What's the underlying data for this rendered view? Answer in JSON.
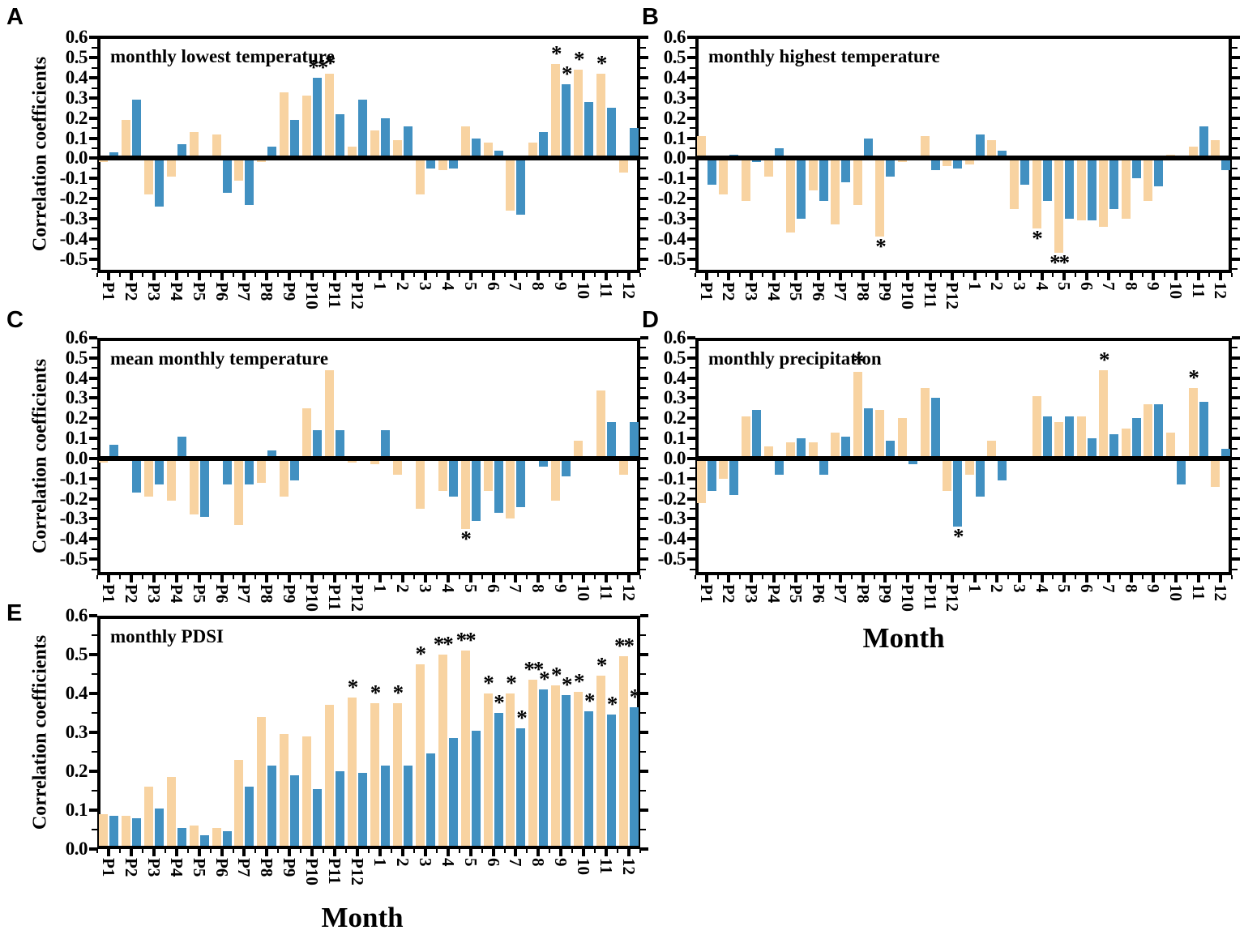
{
  "figure": {
    "x_axis_label": "Month",
    "y_axis_label": "Correlation coefficients",
    "colors": {
      "orange_series": "#F8D3A1",
      "blue_series": "#4190C1",
      "axis": "#000000",
      "background": "#FFFFFF"
    },
    "categories": [
      "P1",
      "P2",
      "P3",
      "P4",
      "P5",
      "P6",
      "P7",
      "P8",
      "P9",
      "P10",
      "P11",
      "P12",
      "1",
      "2",
      "3",
      "4",
      "5",
      "6",
      "7",
      "8",
      "9",
      "10",
      "11",
      "12"
    ]
  },
  "chart_data": [
    {
      "panel_label": "A",
      "type": "bar",
      "title": "monthly lowest temperature",
      "ylabel": "Correlation coefficients",
      "xlabel": "",
      "ylim": [
        -0.5,
        0.6
      ],
      "yticks": [
        0.6,
        0.5,
        0.4,
        0.3,
        0.2,
        0.1,
        0.0,
        -0.1,
        -0.2,
        -0.3,
        -0.4,
        -0.5
      ],
      "categories": [
        "P1",
        "P2",
        "P3",
        "P4",
        "P5",
        "P6",
        "P7",
        "P8",
        "P9",
        "P10",
        "P11",
        "P12",
        "1",
        "2",
        "3",
        "4",
        "5",
        "6",
        "7",
        "8",
        "9",
        "10",
        "11",
        "12"
      ],
      "series": [
        {
          "name": "orange",
          "color": "#F8D3A1",
          "values": [
            -0.02,
            0.19,
            -0.18,
            -0.09,
            0.13,
            0.12,
            -0.11,
            -0.02,
            0.33,
            0.31,
            0.42,
            0.06,
            0.14,
            0.09,
            -0.18,
            -0.06,
            0.16,
            0.08,
            -0.26,
            0.08,
            0.47,
            0.44,
            0.42,
            -0.07
          ],
          "significance": [
            "",
            "",
            "",
            "",
            "",
            "",
            "",
            "",
            "",
            "",
            "*",
            "",
            "",
            "",
            "",
            "",
            "",
            "",
            "",
            "",
            "*",
            "*",
            "*",
            ""
          ]
        },
        {
          "name": "blue",
          "color": "#4190C1",
          "values": [
            0.03,
            0.29,
            -0.24,
            0.07,
            0,
            -0.17,
            -0.23,
            0.06,
            0.19,
            0.4,
            0.22,
            0.29,
            0.2,
            0.16,
            -0.05,
            -0.05,
            0.1,
            0.04,
            -0.28,
            0.13,
            0.37,
            0.28,
            0.25,
            0.15
          ],
          "significance": [
            "",
            "",
            "",
            "",
            "",
            "",
            "",
            "",
            "",
            "**",
            "",
            "",
            "",
            "",
            "",
            "",
            "",
            "",
            "",
            "",
            "*",
            "",
            "",
            ""
          ]
        }
      ]
    },
    {
      "panel_label": "B",
      "type": "bar",
      "title": "monthly highest temperature",
      "ylabel": "",
      "xlabel": "Month",
      "ylim": [
        -0.5,
        0.6
      ],
      "yticks": [
        0.6,
        0.5,
        0.4,
        0.3,
        0.2,
        0.1,
        0.0,
        -0.1,
        -0.2,
        -0.3,
        -0.4,
        -0.5
      ],
      "categories": [
        "P1",
        "P2",
        "P3",
        "P4",
        "P5",
        "P6",
        "P7",
        "P8",
        "P9",
        "P10",
        "P11",
        "P12",
        "1",
        "2",
        "3",
        "4",
        "5",
        "6",
        "7",
        "8",
        "9",
        "10",
        "11",
        "12"
      ],
      "series": [
        {
          "name": "orange",
          "color": "#F8D3A1",
          "values": [
            0.11,
            -0.18,
            -0.21,
            -0.09,
            -0.37,
            -0.16,
            -0.33,
            -0.23,
            -0.39,
            -0.02,
            0.11,
            -0.04,
            -0.03,
            0.09,
            -0.25,
            -0.35,
            -0.47,
            -0.31,
            -0.34,
            -0.3,
            -0.21,
            0.02,
            0.06,
            0.09
          ],
          "significance": [
            "",
            "",
            "",
            "",
            "",
            "",
            "",
            "",
            "*",
            "",
            "",
            "",
            "",
            "",
            "",
            "*",
            "**",
            "",
            "",
            "",
            "",
            "",
            "",
            ""
          ]
        },
        {
          "name": "blue",
          "color": "#4190C1",
          "values": [
            -0.13,
            0.02,
            -0.02,
            0.05,
            -0.3,
            -0.21,
            -0.12,
            0.1,
            -0.09,
            -0.01,
            -0.06,
            -0.05,
            0.12,
            0.04,
            -0.13,
            -0.21,
            -0.3,
            -0.31,
            -0.25,
            -0.1,
            -0.14,
            0,
            0.16,
            -0.06
          ],
          "significance": [
            "",
            "",
            "",
            "",
            "",
            "",
            "",
            "",
            "",
            "",
            "",
            "",
            "",
            "",
            "",
            "",
            "",
            "",
            "",
            "",
            "",
            "",
            "",
            ""
          ]
        }
      ]
    },
    {
      "panel_label": "C",
      "type": "bar",
      "title": "mean monthly temperature",
      "ylabel": "Correlation coefficients",
      "xlabel": "",
      "ylim": [
        -0.5,
        0.6
      ],
      "yticks": [
        0.6,
        0.5,
        0.4,
        0.3,
        0.2,
        0.1,
        0.0,
        -0.1,
        -0.2,
        -0.3,
        -0.4,
        -0.5
      ],
      "categories": [
        "P1",
        "P2",
        "P3",
        "P4",
        "P5",
        "P6",
        "P7",
        "P8",
        "P9",
        "P10",
        "P11",
        "P12",
        "1",
        "2",
        "3",
        "4",
        "5",
        "6",
        "7",
        "8",
        "9",
        "10",
        "11",
        "12"
      ],
      "series": [
        {
          "name": "orange",
          "color": "#F8D3A1",
          "values": [
            -0.02,
            0,
            -0.19,
            -0.21,
            -0.28,
            0,
            -0.33,
            -0.12,
            -0.19,
            0.25,
            0.44,
            -0.02,
            -0.03,
            -0.08,
            -0.25,
            -0.16,
            -0.35,
            -0.16,
            -0.3,
            -0.01,
            -0.21,
            0.09,
            0.34,
            -0.08
          ],
          "significance": [
            "",
            "",
            "",
            "",
            "",
            "",
            "",
            "",
            "",
            "",
            "",
            "",
            "",
            "",
            "",
            "",
            "*",
            "",
            "",
            "",
            "",
            "",
            "",
            ""
          ]
        },
        {
          "name": "blue",
          "color": "#4190C1",
          "values": [
            0.07,
            -0.17,
            -0.13,
            0.11,
            -0.29,
            -0.13,
            -0.13,
            0.04,
            -0.11,
            0.14,
            0.14,
            0,
            0.14,
            0,
            -0.01,
            -0.19,
            -0.31,
            -0.27,
            -0.24,
            -0.04,
            -0.09,
            0,
            0.18,
            0.18
          ],
          "significance": [
            "",
            "",
            "",
            "",
            "",
            "",
            "",
            "",
            "",
            "",
            "",
            "",
            "",
            "",
            "",
            "",
            "",
            "",
            "",
            "",
            "",
            "",
            "",
            ""
          ]
        }
      ]
    },
    {
      "panel_label": "D",
      "type": "bar",
      "title": "monthly precipitation",
      "ylabel": "",
      "xlabel": "Month",
      "ylim": [
        -0.5,
        0.6
      ],
      "yticks": [
        0.6,
        0.5,
        0.4,
        0.3,
        0.2,
        0.1,
        0.0,
        -0.1,
        -0.2,
        -0.3,
        -0.4,
        -0.5
      ],
      "categories": [
        "P1",
        "P2",
        "P3",
        "P4",
        "P5",
        "P6",
        "P7",
        "P8",
        "P9",
        "P10",
        "P11",
        "P12",
        "1",
        "2",
        "3",
        "4",
        "5",
        "6",
        "7",
        "8",
        "9",
        "10",
        "11",
        "12"
      ],
      "series": [
        {
          "name": "orange",
          "color": "#F8D3A1",
          "values": [
            -0.22,
            -0.1,
            0.21,
            0.06,
            0.08,
            0.08,
            0.13,
            0.43,
            0.24,
            0.2,
            0.35,
            -0.16,
            -0.08,
            0.09,
            0,
            0.31,
            0.18,
            0.21,
            0.44,
            0.15,
            0.27,
            0.13,
            0.35,
            -0.14
          ],
          "significance": [
            "",
            "",
            "",
            "",
            "",
            "",
            "",
            "*",
            "",
            "",
            "",
            "",
            "",
            "",
            "",
            "",
            "",
            "",
            "*",
            "",
            "",
            "",
            "*",
            ""
          ]
        },
        {
          "name": "blue",
          "color": "#4190C1",
          "values": [
            -0.16,
            -0.18,
            0.24,
            -0.08,
            0.1,
            -0.08,
            0.11,
            0.25,
            0.09,
            -0.03,
            0.3,
            -0.34,
            -0.19,
            -0.11,
            0,
            0.21,
            0.21,
            0.1,
            0.12,
            0.2,
            0.27,
            -0.13,
            0.28,
            0.05
          ],
          "significance": [
            "",
            "",
            "",
            "",
            "",
            "",
            "",
            "",
            "",
            "",
            "",
            "*",
            "",
            "",
            "",
            "",
            "",
            "",
            "",
            "",
            "",
            "",
            "",
            ""
          ]
        }
      ]
    },
    {
      "panel_label": "E",
      "type": "bar",
      "title": "monthly PDSI",
      "ylabel": "Correlation coefficients",
      "xlabel": "Month",
      "ylim": [
        0,
        0.6
      ],
      "yticks": [
        0.6,
        0.5,
        0.4,
        0.3,
        0.2,
        0.1,
        0.0
      ],
      "categories": [
        "P1",
        "P2",
        "P3",
        "P4",
        "P5",
        "P6",
        "P7",
        "P8",
        "P9",
        "P10",
        "P11",
        "P12",
        "1",
        "2",
        "3",
        "4",
        "5",
        "6",
        "7",
        "8",
        "9",
        "10",
        "11",
        "12"
      ],
      "series": [
        {
          "name": "orange",
          "color": "#F8D3A1",
          "values": [
            0.09,
            0.085,
            0.16,
            0.185,
            0.06,
            0.055,
            0.23,
            0.34,
            0.295,
            0.29,
            0.37,
            0.39,
            0.375,
            0.375,
            0.475,
            0.5,
            0.51,
            0.4,
            0.4,
            0.435,
            0.42,
            0.405,
            0.445,
            0.495
          ],
          "significance": [
            "",
            "",
            "",
            "",
            "",
            "",
            "",
            "",
            "",
            "",
            "",
            "*",
            "*",
            "*",
            "*",
            "**",
            "**",
            "*",
            "*",
            "**",
            "*",
            "*",
            "*",
            "**"
          ]
        },
        {
          "name": "blue",
          "color": "#4190C1",
          "values": [
            0.085,
            0.08,
            0.105,
            0.055,
            0.035,
            0.045,
            0.16,
            0.215,
            0.19,
            0.155,
            0.2,
            0.195,
            0.215,
            0.215,
            0.245,
            0.285,
            0.305,
            0.35,
            0.31,
            0.41,
            0.395,
            0.355,
            0.345,
            0.365
          ],
          "significance": [
            "",
            "",
            "",
            "",
            "",
            "",
            "",
            "",
            "",
            "",
            "",
            "",
            "",
            "",
            "",
            "",
            "",
            "*",
            "*",
            "*",
            "*",
            "*",
            "*",
            "*"
          ]
        }
      ]
    }
  ]
}
